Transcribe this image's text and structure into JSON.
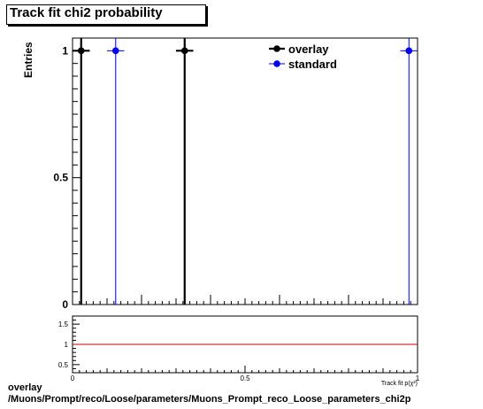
{
  "title": "Track fit chi2 probability",
  "footer": {
    "line1": "overlay",
    "line2": "/Muons/Prompt/reco/Loose/parameters/Muons_Prompt_reco_Loose_parameters_chi2p"
  },
  "colors": {
    "overlay": "#000000",
    "standard": "#0000ff",
    "ratio_line": "#cc0000"
  },
  "chart_data": [
    {
      "type": "scatter",
      "title": "Track fit chi2 probability",
      "ylabel": "Entries",
      "xlim": [
        0,
        1
      ],
      "ylim": [
        0,
        1.05
      ],
      "yticks": [
        0,
        0.5,
        1
      ],
      "ytick_labels": [
        "0",
        "0.5",
        "1"
      ],
      "legend": "top-right",
      "series": [
        {
          "name": "overlay",
          "points": [
            {
              "x": 0.025,
              "y": 1,
              "xerr": 0.025
            },
            {
              "x": 0.325,
              "y": 1,
              "xerr": 0.025
            }
          ]
        },
        {
          "name": "standard",
          "points": [
            {
              "x": 0.125,
              "y": 1,
              "xerr": 0.025
            },
            {
              "x": 0.975,
              "y": 1,
              "xerr": 0.025
            }
          ]
        }
      ]
    },
    {
      "type": "line",
      "xlabel": "Track fit p(χ²)",
      "xlim": [
        0,
        1
      ],
      "ylim": [
        0.3,
        1.7
      ],
      "xticks": [
        0,
        0.5,
        1
      ],
      "xtick_labels": [
        "0",
        "0.5",
        "1"
      ],
      "yticks": [
        0.5,
        1,
        1.5
      ],
      "ytick_labels": [
        "0.5",
        "1",
        "1.5"
      ],
      "series": [
        {
          "name": "",
          "x": [
            0,
            1
          ],
          "y": [
            1,
            1
          ]
        }
      ]
    }
  ]
}
